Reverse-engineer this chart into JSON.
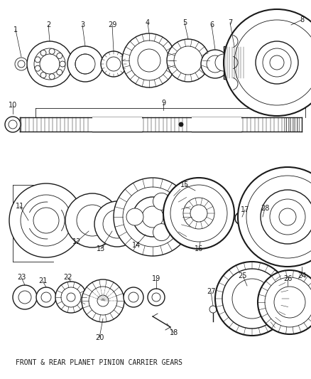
{
  "title": "FRONT & REAR PLANET PINION CARRIER GEARS",
  "bg_color": "#ffffff",
  "line_color": "#1a1a1a",
  "figsize": [
    4.38,
    5.33
  ],
  "dpi": 100,
  "xlim": [
    0,
    438
  ],
  "ylim": [
    0,
    533
  ]
}
